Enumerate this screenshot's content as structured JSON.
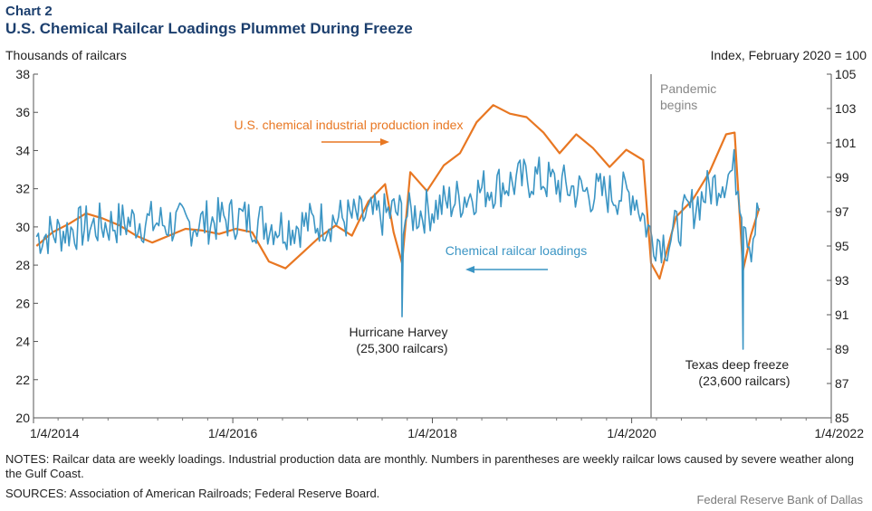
{
  "chart_label": "Chart 2",
  "chart_data": {
    "type": "line",
    "title": "U.S. Chemical Railcar Loadings Plummet During Freeze",
    "left_axis_label": "Thousands of railcars",
    "right_axis_label": "Index, February 2020 = 100",
    "x_ticks": [
      "1/4/2014",
      "1/4/2016",
      "1/4/2018",
      "1/4/2020",
      "1/4/2022"
    ],
    "x_range": [
      "2014-01-04",
      "2022-01-04"
    ],
    "left_ylim": [
      20,
      38
    ],
    "left_ticks": [
      20,
      22,
      24,
      26,
      28,
      30,
      32,
      34,
      36,
      38
    ],
    "right_ylim": [
      85,
      105
    ],
    "right_ticks": [
      85,
      87,
      89,
      91,
      93,
      95,
      97,
      99,
      101,
      103,
      105
    ],
    "series": [
      {
        "name": "U.S. chemical industrial production index",
        "axis": "right",
        "color": "#e87722",
        "frequency": "monthly",
        "x": [
          "2014-01",
          "2014-03",
          "2014-05",
          "2014-07",
          "2014-09",
          "2014-11",
          "2015-01",
          "2015-03",
          "2015-05",
          "2015-07",
          "2015-09",
          "2015-11",
          "2016-01",
          "2016-03",
          "2016-05",
          "2016-07",
          "2016-09",
          "2016-11",
          "2017-01",
          "2017-03",
          "2017-05",
          "2017-07",
          "2017-08",
          "2017-09",
          "2017-10",
          "2017-12",
          "2018-02",
          "2018-04",
          "2018-06",
          "2018-08",
          "2018-10",
          "2018-12",
          "2019-02",
          "2019-04",
          "2019-06",
          "2019-08",
          "2019-10",
          "2019-12",
          "2020-02",
          "2020-03",
          "2020-04",
          "2020-05",
          "2020-06",
          "2020-08",
          "2020-10",
          "2020-12",
          "2021-01",
          "2021-02",
          "2021-03",
          "2021-04"
        ],
        "values": [
          95.0,
          95.8,
          96.3,
          96.9,
          96.6,
          96.2,
          95.6,
          95.2,
          95.6,
          96.0,
          95.9,
          95.7,
          96.0,
          95.8,
          94.1,
          93.7,
          94.6,
          95.5,
          96.2,
          95.6,
          97.6,
          98.6,
          95.8,
          94.0,
          99.3,
          98.2,
          99.7,
          100.4,
          102.2,
          103.2,
          102.7,
          102.5,
          101.6,
          100.4,
          101.5,
          100.7,
          99.6,
          100.6,
          100.0,
          94.0,
          93.1,
          94.9,
          96.7,
          97.7,
          99.3,
          101.5,
          101.6,
          93.6,
          95.6,
          97.2
        ],
        "label": "U.S. chemical industrial production index"
      },
      {
        "name": "Chemical railcar loadings",
        "axis": "left",
        "color": "#3b95c4",
        "frequency": "weekly",
        "label": "Chemical railcar loadings",
        "keypoints_x": [
          "2014-01",
          "2014-07",
          "2015-01",
          "2015-07",
          "2016-01",
          "2016-07",
          "2017-01",
          "2017-07",
          "2017-08",
          "2017-09",
          "2017-10",
          "2018-01",
          "2018-07",
          "2019-01",
          "2019-07",
          "2020-01",
          "2020-03",
          "2020-05",
          "2020-07",
          "2020-10",
          "2021-01",
          "2021-02",
          "2021-03",
          "2021-04"
        ],
        "keypoints_values": [
          29.5,
          30.0,
          30.3,
          30.1,
          30.5,
          30.0,
          30.4,
          30.6,
          30.8,
          25.3,
          30.6,
          31.0,
          32.0,
          32.6,
          31.8,
          31.7,
          29.5,
          29.2,
          30.5,
          32.0,
          33.0,
          23.6,
          29.0,
          31.0
        ]
      }
    ],
    "vertical_line": {
      "date": "2020-03-15",
      "label_line1": "Pandemic",
      "label_line2": "begins",
      "color": "#888888"
    },
    "annotations": [
      {
        "line1": "Hurricane Harvey",
        "line2": "(25,300 railcars)"
      },
      {
        "line1": "Texas deep freeze",
        "line2": "(23,600 railcars)"
      }
    ],
    "grid": false
  },
  "notes": "NOTES: Railcar data are weekly loadings. Industrial production data are monthly. Numbers in parentheses are weekly railcar lows caused by severe weather along the Gulf Coast.",
  "sources": "SOURCES: Association of American Railroads; Federal Reserve Board.",
  "credit": "Federal Reserve Bank of Dallas"
}
